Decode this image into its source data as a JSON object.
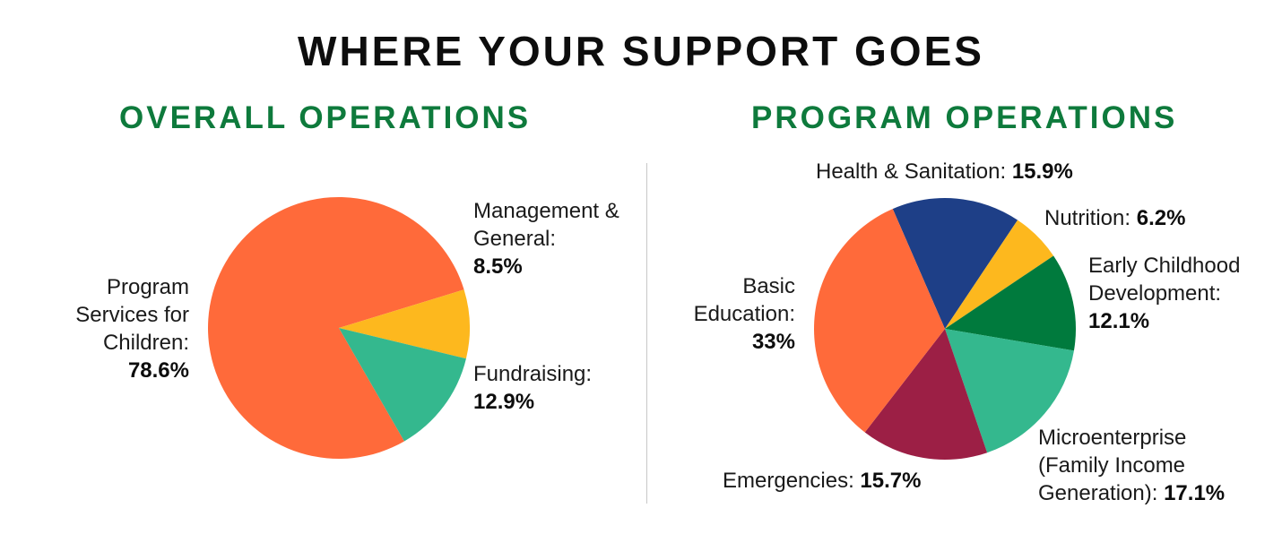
{
  "title": "WHERE YOUR SUPPORT GOES",
  "chart_data": [
    {
      "type": "pie",
      "title": "OVERALL OPERATIONS",
      "slices": [
        {
          "label": "Program Services for Children:",
          "value": 78.6,
          "value_text": "78.6%",
          "color": "#FF6A3A"
        },
        {
          "label": "Management & General:",
          "value": 8.5,
          "value_text": "8.5%",
          "color": "#FDB81E"
        },
        {
          "label": "Fundraising:",
          "value": 12.9,
          "value_text": "12.9%",
          "color": "#34B88E"
        }
      ]
    },
    {
      "type": "pie",
      "title": "PROGRAM OPERATIONS",
      "slices": [
        {
          "label": "Health & Sanitation:",
          "value": 15.9,
          "value_text": "15.9%",
          "color": "#1E3F87"
        },
        {
          "label": "Nutrition:",
          "value": 6.2,
          "value_text": "6.2%",
          "color": "#FDB81E"
        },
        {
          "label": "Early Childhood Development:",
          "value": 12.1,
          "value_text": "12.1%",
          "color": "#007A3D"
        },
        {
          "label": "Microenterprise (Family Income Generation):",
          "value": 17.1,
          "value_text": "17.1%",
          "color": "#34B88E"
        },
        {
          "label": "Emergencies:",
          "value": 15.7,
          "value_text": "15.7%",
          "color": "#9C1F45"
        },
        {
          "label": "Basic Education:",
          "value": 33,
          "value_text": "33%",
          "color": "#FF6A3A"
        }
      ]
    }
  ]
}
